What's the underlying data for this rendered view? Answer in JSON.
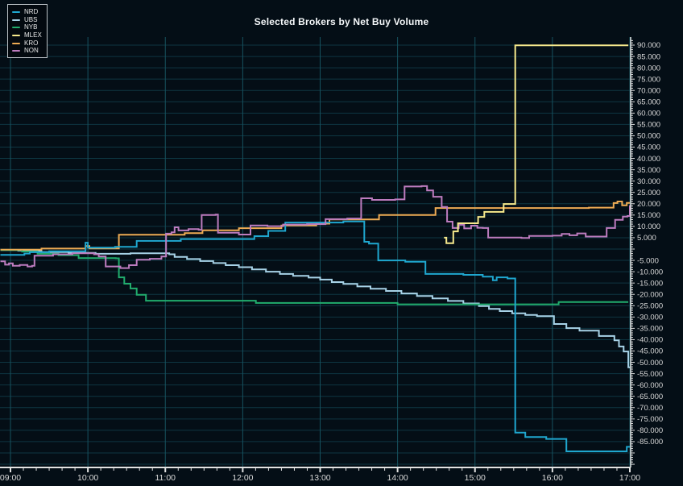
{
  "title": "Selected Brokers by Net Buy Volume",
  "legend": {
    "items": [
      {
        "label": "NRD",
        "color": "#1fa7cf"
      },
      {
        "label": "UBS",
        "color": "#a7d2e7"
      },
      {
        "label": "NYB",
        "color": "#21ac6d"
      },
      {
        "label": "MLEX",
        "color": "#f6e98c"
      },
      {
        "label": "KRO",
        "color": "#eeab54"
      },
      {
        "label": "NON",
        "color": "#bd7cbf"
      }
    ]
  },
  "colors": {
    "background": "#040e16",
    "grid_horizontal": "#0e3642",
    "grid_vertical": "#16525f",
    "axis_line": "#e2e2e2",
    "tick_label": "#d9d9d9",
    "title_text": "#f5f8fa"
  },
  "chart_data": {
    "type": "line",
    "step": true,
    "title": "Selected Brokers by Net Buy Volume",
    "xlabel": "",
    "ylabel": "",
    "grid": true,
    "legend_position": "top-left",
    "xlim_hours": [
      8.85,
      17.05
    ],
    "ylim": [
      -96000,
      94000
    ],
    "x_axis": {
      "unit": "time of day",
      "minor_tick_minutes": 10,
      "ticks": [
        {
          "t": 9,
          "label": "09:00"
        },
        {
          "t": 10,
          "label": "10:00"
        },
        {
          "t": 11,
          "label": "11:00"
        },
        {
          "t": 12,
          "label": "12:00"
        },
        {
          "t": 13,
          "label": "13:00"
        },
        {
          "t": 14,
          "label": "14:00"
        },
        {
          "t": 15,
          "label": "15:00"
        },
        {
          "t": 16,
          "label": "16:00"
        },
        {
          "t": 17,
          "label": "17:00"
        }
      ]
    },
    "y_axis": {
      "unit": "net buy volume",
      "minor_tick": 1000,
      "tick_labels": [
        {
          "v": 90,
          "label": "90.000"
        },
        {
          "v": 85,
          "label": "85.000"
        },
        {
          "v": 80,
          "label": "80.000"
        },
        {
          "v": 75,
          "label": "75.000"
        },
        {
          "v": 70,
          "label": "70.000"
        },
        {
          "v": 65,
          "label": "65.000"
        },
        {
          "v": 60,
          "label": "60.000"
        },
        {
          "v": 55,
          "label": "55.000"
        },
        {
          "v": 50,
          "label": "50.000"
        },
        {
          "v": 45,
          "label": "45.000"
        },
        {
          "v": 40,
          "label": "40.000"
        },
        {
          "v": 35,
          "label": "35.000"
        },
        {
          "v": 30,
          "label": "30.000"
        },
        {
          "v": 25,
          "label": "25.000"
        },
        {
          "v": 20,
          "label": "20.000"
        },
        {
          "v": 15,
          "label": "15.000"
        },
        {
          "v": 10,
          "label": "10.000"
        },
        {
          "v": 5,
          "label": "5.000"
        },
        {
          "v": -5,
          "label": "-5.000"
        },
        {
          "v": -10,
          "label": "-10.000"
        },
        {
          "v": -15,
          "label": "-15.000"
        },
        {
          "v": -20,
          "label": "-20.000"
        },
        {
          "v": -25,
          "label": "-25.000"
        },
        {
          "v": -30,
          "label": "-30.000"
        },
        {
          "v": -35,
          "label": "-35.000"
        },
        {
          "v": -40,
          "label": "-40.000"
        },
        {
          "v": -45,
          "label": "-45.000"
        },
        {
          "v": -50,
          "label": "-50.000"
        },
        {
          "v": -55,
          "label": "-55.000"
        },
        {
          "v": -60,
          "label": "-60.000"
        },
        {
          "v": -65,
          "label": "-65.000"
        },
        {
          "v": -70,
          "label": "-70.000"
        },
        {
          "v": -75,
          "label": "-75.000"
        },
        {
          "v": -80,
          "label": "-80.000"
        },
        {
          "v": -85,
          "label": "-85.000"
        }
      ]
    },
    "series": [
      {
        "name": "NRD",
        "color": "#1fa7cf",
        "points": [
          [
            8.87,
            -2.6
          ],
          [
            9.18,
            -2.0
          ],
          [
            9.25,
            -1.4
          ],
          [
            9.5,
            -1.0
          ],
          [
            9.97,
            2.8
          ],
          [
            10.0,
            0.6
          ],
          [
            10.35,
            1.0
          ],
          [
            10.63,
            3.6
          ],
          [
            11.2,
            4.4
          ],
          [
            12.15,
            5.7
          ],
          [
            12.33,
            8.0
          ],
          [
            12.55,
            11.7
          ],
          [
            13.3,
            12.2
          ],
          [
            13.57,
            3.2
          ],
          [
            13.63,
            2.4
          ],
          [
            13.75,
            -5.0
          ],
          [
            14.1,
            -5.6
          ],
          [
            14.36,
            -11.0
          ],
          [
            14.85,
            -11.4
          ],
          [
            15.1,
            -12.2
          ],
          [
            15.23,
            -13.8
          ],
          [
            15.28,
            -12.5
          ],
          [
            15.42,
            -13.0
          ],
          [
            15.52,
            -81.0
          ],
          [
            15.65,
            -83.0
          ],
          [
            15.92,
            -83.8
          ],
          [
            16.18,
            -89.3
          ],
          [
            16.96,
            -87.3
          ],
          [
            17.0,
            -87.3
          ]
        ]
      },
      {
        "name": "UBS",
        "color": "#a7d2e7",
        "points": [
          [
            8.87,
            -0.4
          ],
          [
            9.1,
            -0.7
          ],
          [
            9.4,
            -1.3
          ],
          [
            9.75,
            -1.7
          ],
          [
            10.1,
            -2.1
          ],
          [
            10.55,
            -1.9
          ],
          [
            11.05,
            -2.3
          ],
          [
            11.12,
            -3.5
          ],
          [
            11.28,
            -4.4
          ],
          [
            11.45,
            -5.3
          ],
          [
            11.62,
            -6.2
          ],
          [
            11.78,
            -7.1
          ],
          [
            11.95,
            -8.0
          ],
          [
            12.12,
            -9.0
          ],
          [
            12.3,
            -10.0
          ],
          [
            12.48,
            -11.0
          ],
          [
            12.65,
            -11.8
          ],
          [
            12.85,
            -12.6
          ],
          [
            13.0,
            -13.5
          ],
          [
            13.15,
            -14.6
          ],
          [
            13.3,
            -15.4
          ],
          [
            13.48,
            -16.5
          ],
          [
            13.65,
            -17.5
          ],
          [
            13.85,
            -18.5
          ],
          [
            14.05,
            -19.6
          ],
          [
            14.25,
            -20.7
          ],
          [
            14.45,
            -21.8
          ],
          [
            14.65,
            -22.9
          ],
          [
            14.85,
            -24.0
          ],
          [
            15.05,
            -25.2
          ],
          [
            15.18,
            -26.4
          ],
          [
            15.32,
            -27.4
          ],
          [
            15.48,
            -28.4
          ],
          [
            15.65,
            -29.1
          ],
          [
            15.8,
            -29.6
          ],
          [
            16.02,
            -33.1
          ],
          [
            16.18,
            -34.9
          ],
          [
            16.35,
            -36.0
          ],
          [
            16.6,
            -38.4
          ],
          [
            16.8,
            -40.3
          ],
          [
            16.86,
            -43.0
          ],
          [
            16.92,
            -45.2
          ],
          [
            16.98,
            -52.2
          ],
          [
            17.0,
            -52.2
          ]
        ]
      },
      {
        "name": "NYB",
        "color": "#21ac6d",
        "points": [
          [
            8.87,
            -0.5
          ],
          [
            9.15,
            -1.1
          ],
          [
            9.35,
            -2.1
          ],
          [
            9.62,
            -2.7
          ],
          [
            9.88,
            -4.0
          ],
          [
            10.36,
            -4.1
          ],
          [
            10.4,
            -12.5
          ],
          [
            10.47,
            -15.3
          ],
          [
            10.55,
            -17.4
          ],
          [
            10.63,
            -20.2
          ],
          [
            10.75,
            -22.8
          ],
          [
            12.17,
            -23.8
          ],
          [
            14.0,
            -24.4
          ],
          [
            16.08,
            -23.4
          ],
          [
            16.98,
            -23.4
          ]
        ]
      },
      {
        "name": "MLEX",
        "color": "#f6e98c",
        "points": [
          [
            14.6,
            5.0
          ],
          [
            14.63,
            2.6
          ],
          [
            14.72,
            7.8
          ],
          [
            14.78,
            11.4
          ],
          [
            15.04,
            14.2
          ],
          [
            15.12,
            16.4
          ],
          [
            15.37,
            19.9
          ],
          [
            15.52,
            89.9
          ],
          [
            16.98,
            89.9
          ]
        ]
      },
      {
        "name": "KRO",
        "color": "#eeab54",
        "points": [
          [
            8.87,
            -0.3
          ],
          [
            9.4,
            0.2
          ],
          [
            9.97,
            1.3
          ],
          [
            10.02,
            0.3
          ],
          [
            10.4,
            6.3
          ],
          [
            11.25,
            7.0
          ],
          [
            11.48,
            8.3
          ],
          [
            11.95,
            9.2
          ],
          [
            12.5,
            10.4
          ],
          [
            12.95,
            11.2
          ],
          [
            13.12,
            13.1
          ],
          [
            13.76,
            15.0
          ],
          [
            14.49,
            18.1
          ],
          [
            16.47,
            18.3
          ],
          [
            16.79,
            20.3
          ],
          [
            16.84,
            21.0
          ],
          [
            16.9,
            19.3
          ],
          [
            16.96,
            20.4
          ],
          [
            17.0,
            20.4
          ]
        ]
      },
      {
        "name": "NON",
        "color": "#bd7cbf",
        "points": [
          [
            8.87,
            -5.4
          ],
          [
            8.93,
            -6.9
          ],
          [
            8.98,
            -6.3
          ],
          [
            9.03,
            -7.4
          ],
          [
            9.12,
            -7.0
          ],
          [
            9.22,
            -7.7
          ],
          [
            9.28,
            -7.4
          ],
          [
            9.31,
            -2.9
          ],
          [
            9.55,
            -2.3
          ],
          [
            9.8,
            -1.9
          ],
          [
            10.08,
            -2.3
          ],
          [
            10.14,
            -3.3
          ],
          [
            10.23,
            -7.7
          ],
          [
            10.42,
            -8.4
          ],
          [
            10.53,
            -7.1
          ],
          [
            10.63,
            -4.7
          ],
          [
            10.8,
            -4.3
          ],
          [
            10.95,
            -3.3
          ],
          [
            11.01,
            6.8
          ],
          [
            11.08,
            7.4
          ],
          [
            11.12,
            9.6
          ],
          [
            11.17,
            8.2
          ],
          [
            11.3,
            8.8
          ],
          [
            11.43,
            8.5
          ],
          [
            11.47,
            15.0
          ],
          [
            11.65,
            15.2
          ],
          [
            11.68,
            7.2
          ],
          [
            11.95,
            6.4
          ],
          [
            12.1,
            10.4
          ],
          [
            12.32,
            10.1
          ],
          [
            12.52,
            10.8
          ],
          [
            12.83,
            11.0
          ],
          [
            13.07,
            13.2
          ],
          [
            13.35,
            13.5
          ],
          [
            13.53,
            22.4
          ],
          [
            13.67,
            21.7
          ],
          [
            13.97,
            21.9
          ],
          [
            14.09,
            27.6
          ],
          [
            14.31,
            27.8
          ],
          [
            14.38,
            25.9
          ],
          [
            14.46,
            23.1
          ],
          [
            14.57,
            18.6
          ],
          [
            14.64,
            12.1
          ],
          [
            14.71,
            9.3
          ],
          [
            14.79,
            10.7
          ],
          [
            14.86,
            9.1
          ],
          [
            14.95,
            10.3
          ],
          [
            15.03,
            9.4
          ],
          [
            15.1,
            9.3
          ],
          [
            15.17,
            5.1
          ],
          [
            15.6,
            4.9
          ],
          [
            15.7,
            5.8
          ],
          [
            16.0,
            5.9
          ],
          [
            16.12,
            6.7
          ],
          [
            16.22,
            6.1
          ],
          [
            16.32,
            6.9
          ],
          [
            16.43,
            5.5
          ],
          [
            16.69,
            5.5
          ],
          [
            16.7,
            9.3
          ],
          [
            16.81,
            12.9
          ],
          [
            16.91,
            14.3
          ],
          [
            16.97,
            14.6
          ],
          [
            17.0,
            19.3
          ]
        ]
      }
    ]
  }
}
